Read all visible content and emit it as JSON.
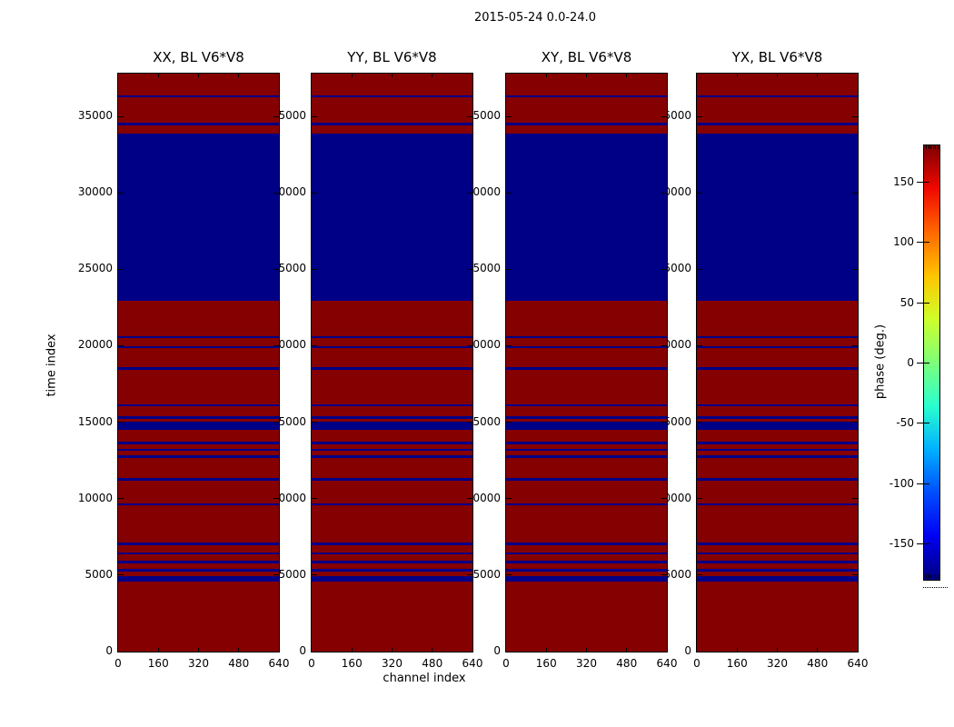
{
  "figure": {
    "title": "2015-05-24 0.0-24.0",
    "background": "#ffffff"
  },
  "axes": {
    "xlabel": "channel index",
    "ylabel": "time index",
    "x_ticks": [
      0,
      160,
      320,
      480,
      640
    ],
    "y_ticks": [
      0,
      5000,
      10000,
      15000,
      20000,
      25000,
      30000,
      35000
    ],
    "x_range": [
      0,
      640
    ],
    "y_range": [
      0,
      37800
    ]
  },
  "colorbar": {
    "label": "phase (deg.)",
    "ticks": [
      150,
      100,
      50,
      0,
      -50,
      -100,
      -150
    ],
    "range": [
      -180,
      180
    ],
    "colormap": "jet"
  },
  "colors": {
    "phase_positive": "#850000",
    "phase_negative": "#000086",
    "axis": "#000000"
  },
  "chart_data": {
    "type": "heatmap",
    "title": "2015-05-24 0.0-24.0",
    "panel_titles": [
      "XX, BL V6*V8",
      "YY, BL V6*V8",
      "XY, BL V6*V8",
      "YX, BL V6*V8"
    ],
    "xlabel": "channel index",
    "ylabel": "time index",
    "x_range": [
      0,
      640
    ],
    "y_range": [
      0,
      37800
    ],
    "colorbar_label": "phase (deg.)",
    "color_range_deg": [
      -180,
      180
    ],
    "colormap": "jet",
    "background_phase_deg": 180,
    "band_phase_deg": -180,
    "bands_time_index": [
      [
        36240,
        36390
      ],
      [
        34440,
        34590
      ],
      [
        22950,
        33900
      ],
      [
        20500,
        20650
      ],
      [
        19830,
        19980
      ],
      [
        18430,
        18580
      ],
      [
        16030,
        16180
      ],
      [
        15230,
        15380
      ],
      [
        14500,
        15060
      ],
      [
        13580,
        13730
      ],
      [
        13130,
        13280
      ],
      [
        12680,
        12830
      ],
      [
        11180,
        11330
      ],
      [
        9550,
        9700
      ],
      [
        6980,
        7130
      ],
      [
        6330,
        6480
      ],
      [
        5780,
        5930
      ],
      [
        5230,
        5380
      ],
      [
        4550,
        4950
      ]
    ],
    "bands_note": "identical band pattern in all four panels; background is +180 deg (dark red), bands are -180 deg (dark blue)"
  }
}
